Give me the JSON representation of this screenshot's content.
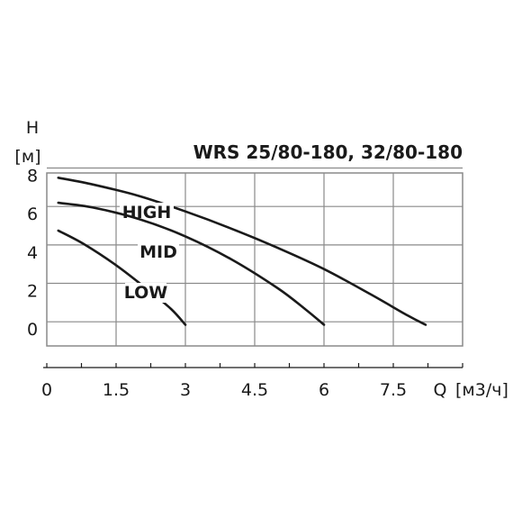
{
  "chart_data": {
    "type": "line",
    "title": "WRS 25/80-180, 32/80-180",
    "ylabel": "H",
    "yunit": "[м]",
    "xlabel": "Q",
    "xunit": "[м3/ч]",
    "x_ticks": [
      "0",
      "1.5",
      "3",
      "4.5",
      "6",
      "7.5"
    ],
    "y_ticks": [
      "0",
      "2",
      "4",
      "6",
      "8"
    ],
    "xlim": [
      0,
      9
    ],
    "ylim": [
      -0.6,
      8.4
    ],
    "grid": true,
    "series": [
      {
        "name": "HIGH",
        "x": [
          0.25,
          1.0,
          2.0,
          3.0,
          4.0,
          5.0,
          6.0,
          7.0,
          7.8,
          8.2
        ],
        "y": [
          8.15,
          7.8,
          7.2,
          6.4,
          5.5,
          4.5,
          3.4,
          2.1,
          1.0,
          0.5
        ]
      },
      {
        "name": "MID",
        "x": [
          0.25,
          1.0,
          2.0,
          3.0,
          4.0,
          5.0,
          5.6,
          6.0
        ],
        "y": [
          6.85,
          6.6,
          6.0,
          5.1,
          3.9,
          2.4,
          1.3,
          0.5
        ]
      },
      {
        "name": "LOW",
        "x": [
          0.25,
          0.8,
          1.5,
          2.2,
          2.7,
          3.0
        ],
        "y": [
          5.4,
          4.7,
          3.6,
          2.3,
          1.3,
          0.5
        ]
      }
    ]
  },
  "colors": {
    "curve": "#1a1a1a",
    "grid": "#8a8a8a",
    "axis": "#1a1a1a",
    "label_background": "#ffffff"
  }
}
